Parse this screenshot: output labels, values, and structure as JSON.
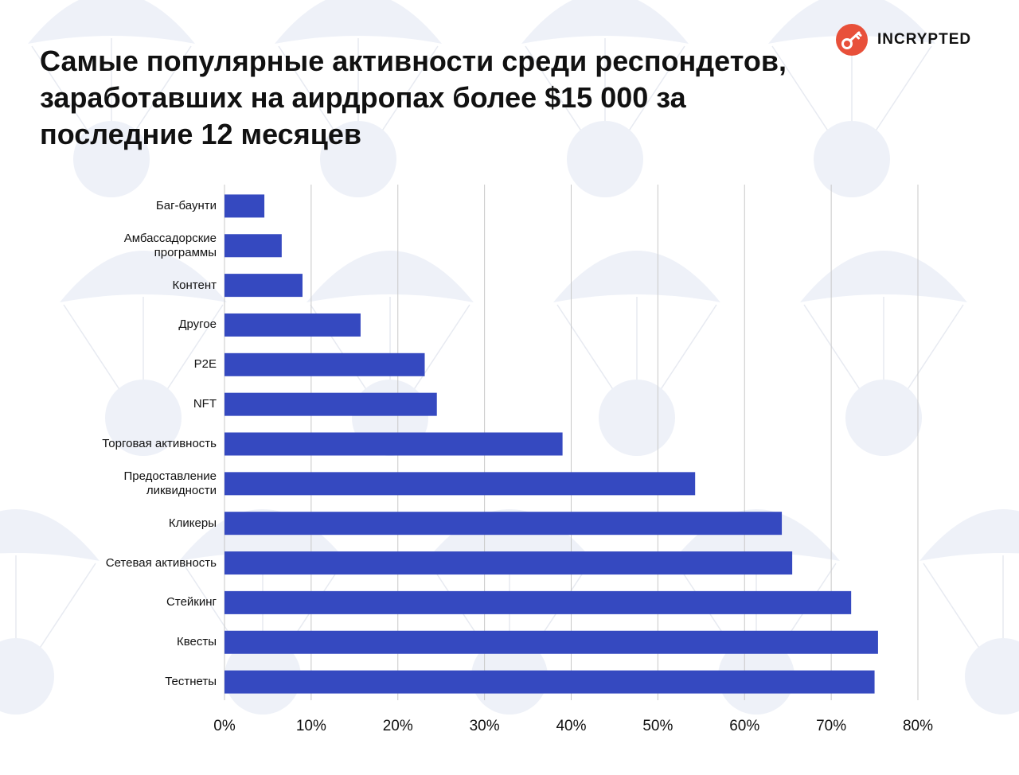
{
  "title_lines": [
    "Самые популярные активности среди респондетов,",
    "заработавших на аирдропах более $15 000 за",
    "последние 12 месяцев"
  ],
  "brand": {
    "name": "INCRYPTED",
    "accent": "#e8503a"
  },
  "colors": {
    "bar": "#3549c0",
    "grid": "#c8c8c8",
    "text": "#111111"
  },
  "chart_data": {
    "type": "bar",
    "orientation": "horizontal",
    "title": "Самые популярные активности среди респондетов, заработавших на аирдропах более $15 000 за последние 12 месяцев",
    "categories": [
      [
        "Баг-баунти"
      ],
      [
        "Амбассадорские",
        "программы"
      ],
      [
        "Контент"
      ],
      [
        "Другое"
      ],
      [
        "P2E"
      ],
      [
        "NFT"
      ],
      [
        "Торговая активность"
      ],
      [
        "Предоставление",
        "ликвидности"
      ],
      [
        "Кликеры"
      ],
      [
        "Сетевая активность"
      ],
      [
        "Стейкинг"
      ],
      [
        "Квесты"
      ],
      [
        "Тестнеты"
      ]
    ],
    "values": [
      4.6,
      6.6,
      9.0,
      15.7,
      23.1,
      24.5,
      39.0,
      54.3,
      64.3,
      65.5,
      72.3,
      75.4,
      75.0
    ],
    "unit": "%",
    "xlim": [
      0,
      80
    ],
    "xticks": [
      0,
      10,
      20,
      30,
      40,
      50,
      60,
      70,
      80
    ],
    "tick_labels": [
      "0%",
      "10%",
      "20%",
      "30%",
      "40%",
      "50%",
      "60%",
      "70%",
      "80%"
    ],
    "grid": true,
    "xlabel": "",
    "ylabel": ""
  }
}
